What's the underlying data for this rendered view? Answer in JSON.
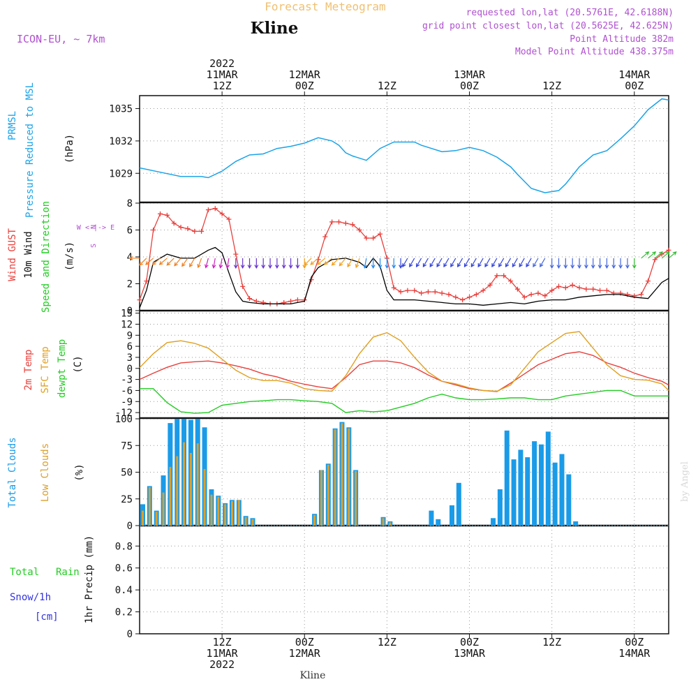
{
  "header": {
    "title": "Forecast Meteogram",
    "location": "Kline",
    "model": "ICON-EU, ~ 7km",
    "requested": "requested lon,lat (20.5761E, 42.6188N)",
    "grid_point": "grid point closest lon,lat (20.5625E, 42.625N)",
    "point_altitude": "Point Altitude 382m",
    "model_altitude": "Model Point Altitude 438.375m",
    "footer_location": "Kline",
    "watermark": "by Angel"
  },
  "colors": {
    "pressure": "#1aa3e8",
    "gust": "#e8403c",
    "wind": "#000000",
    "temp": "#e8403c",
    "sfc": "#e0a020",
    "dewpt": "#22cc22",
    "total_clouds": "#1a9be8",
    "low_clouds": "#d9a030",
    "purple": "#b050d0",
    "orange": "#f0c070",
    "rain": "#22cc22",
    "snow": "#3333dd"
  },
  "time_axis": {
    "top_labels": [
      {
        "t": 12,
        "lines": [
          "2022",
          "11MAR",
          "12Z"
        ]
      },
      {
        "t": 24,
        "lines": [
          "12MAR",
          "00Z"
        ]
      },
      {
        "t": 36,
        "lines": [
          "12Z"
        ]
      },
      {
        "t": 48,
        "lines": [
          "13MAR",
          "00Z"
        ]
      },
      {
        "t": 60,
        "lines": [
          "12Z"
        ]
      },
      {
        "t": 72,
        "lines": [
          "14MAR",
          "00Z"
        ]
      }
    ],
    "bottom_labels": [
      {
        "t": 12,
        "lines": [
          "12Z",
          "11MAR",
          "2022"
        ]
      },
      {
        "t": 24,
        "lines": [
          "00Z",
          "12MAR"
        ]
      },
      {
        "t": 36,
        "lines": [
          "12Z"
        ]
      },
      {
        "t": 48,
        "lines": [
          "00Z",
          "13MAR"
        ]
      },
      {
        "t": 60,
        "lines": [
          "12Z"
        ]
      },
      {
        "t": 72,
        "lines": [
          "00Z",
          "14MAR"
        ]
      }
    ],
    "range_hours": [
      0,
      77
    ]
  },
  "panel_labels": {
    "pressure": [
      "PRMSL",
      "Pressure Reduced to MSL"
    ],
    "pressure_unit": "(hPa)",
    "wind": [
      "Wind GUST",
      "10m Wind",
      "Speed and Direction"
    ],
    "wind_unit": "(m/s)",
    "compass": [
      "N",
      "W <-|-> E",
      "S"
    ],
    "temp": [
      "2m Temp",
      "SFC Temp",
      "dewpt Temp"
    ],
    "temp_unit": "(C)",
    "clouds": [
      "Total Clouds",
      "Low Clouds"
    ],
    "clouds_unit": "(%)",
    "precip": [
      "Total",
      "Rain",
      "Snow/1h",
      "[cm]"
    ],
    "precip_unit": "1hr Precip (mm)"
  },
  "chart_data": [
    {
      "type": "line",
      "title": "PRMSL Pressure Reduced to MSL",
      "ylabel": "hPa",
      "ylim": [
        1026.3,
        1036.2
      ],
      "yticks": [
        "1029",
        "1032",
        "1035"
      ],
      "x": [
        0,
        3,
        6,
        9,
        10,
        12,
        14,
        16,
        18,
        20,
        22,
        24,
        26,
        28,
        29,
        30,
        31,
        33,
        35,
        37,
        40,
        41,
        44,
        46,
        48,
        50,
        52,
        54,
        55,
        57,
        59,
        60,
        61,
        62,
        63,
        64,
        66,
        68,
        70,
        72,
        74,
        76,
        77
      ],
      "values": [
        1029.5,
        1029.1,
        1028.7,
        1028.7,
        1028.6,
        1029.2,
        1030.1,
        1030.7,
        1030.8,
        1031.3,
        1031.5,
        1031.8,
        1032.3,
        1032.0,
        1031.6,
        1030.9,
        1030.6,
        1030.2,
        1031.3,
        1031.9,
        1031.9,
        1031.6,
        1031.0,
        1031.1,
        1031.4,
        1031.1,
        1030.5,
        1029.6,
        1028.9,
        1027.6,
        1027.2,
        1027.3,
        1027.4,
        1028.0,
        1028.8,
        1029.6,
        1030.7,
        1031.1,
        1032.2,
        1033.4,
        1034.9,
        1035.9,
        1035.8
      ]
    },
    {
      "type": "line",
      "title": "Wind GUST / 10m Wind Speed and Direction",
      "ylabel": "m/s",
      "ylim": [
        0,
        8
      ],
      "yticks": [
        "0",
        "2",
        "4",
        "6",
        "8"
      ],
      "series": [
        {
          "name": "Wind GUST",
          "x": [
            0,
            1,
            2,
            3,
            4,
            5,
            6,
            7,
            8,
            9,
            10,
            11,
            12,
            13,
            14,
            15,
            16,
            17,
            18,
            19,
            20,
            21,
            22,
            23,
            24,
            25,
            26,
            27,
            28,
            29,
            30,
            31,
            32,
            33,
            34,
            35,
            36,
            37,
            38,
            39,
            40,
            41,
            42,
            43,
            44,
            45,
            46,
            47,
            48,
            49,
            50,
            51,
            52,
            53,
            54,
            55,
            56,
            57,
            58,
            59,
            60,
            61,
            62,
            63,
            64,
            65,
            66,
            67,
            68,
            69,
            70,
            71,
            72,
            73,
            74,
            75,
            76,
            77
          ],
          "values": [
            0.8,
            2.2,
            6.0,
            7.2,
            7.1,
            6.5,
            6.2,
            6.1,
            5.9,
            5.9,
            7.5,
            7.6,
            7.2,
            6.8,
            4.2,
            1.8,
            0.9,
            0.7,
            0.6,
            0.5,
            0.5,
            0.6,
            0.7,
            0.8,
            0.8,
            2.3,
            3.8,
            5.5,
            6.6,
            6.6,
            6.5,
            6.4,
            6.0,
            5.4,
            5.4,
            5.7,
            3.9,
            1.7,
            1.4,
            1.5,
            1.5,
            1.3,
            1.4,
            1.4,
            1.3,
            1.2,
            1.0,
            0.8,
            1.0,
            1.2,
            1.5,
            1.9,
            2.6,
            2.6,
            2.2,
            1.6,
            1.0,
            1.2,
            1.3,
            1.1,
            1.5,
            1.8,
            1.7,
            1.9,
            1.7,
            1.6,
            1.6,
            1.5,
            1.5,
            1.3,
            1.3,
            1.2,
            1.1,
            1.2,
            2.2,
            3.8,
            4.2,
            4.5
          ]
        },
        {
          "name": "10m Wind",
          "x": [
            0,
            1,
            2,
            4,
            6,
            8,
            10,
            11,
            12,
            13,
            14,
            15,
            16,
            18,
            20,
            22,
            23,
            24,
            25,
            26,
            28,
            30,
            32,
            33,
            34,
            35,
            36,
            37,
            40,
            42,
            44,
            46,
            48,
            50,
            52,
            54,
            56,
            58,
            60,
            62,
            64,
            66,
            68,
            70,
            72,
            74,
            76,
            77
          ],
          "values": [
            0.2,
            1.5,
            3.6,
            4.2,
            3.9,
            3.9,
            4.5,
            4.7,
            4.3,
            2.8,
            1.4,
            0.7,
            0.6,
            0.5,
            0.5,
            0.5,
            0.6,
            0.7,
            2.5,
            3.2,
            3.8,
            3.9,
            3.6,
            3.2,
            3.9,
            3.3,
            1.5,
            0.8,
            0.8,
            0.7,
            0.6,
            0.5,
            0.5,
            0.4,
            0.5,
            0.6,
            0.5,
            0.7,
            0.8,
            0.8,
            1.0,
            1.1,
            1.2,
            1.2,
            1.0,
            0.9,
            2.1,
            2.4
          ]
        }
      ],
      "wind_dir_x": [
        0,
        1,
        2,
        3,
        4,
        5,
        6,
        7,
        8,
        9,
        10,
        11,
        12,
        13,
        14,
        15,
        16,
        17,
        18,
        19,
        20,
        21,
        22,
        23,
        24,
        25,
        26,
        27,
        28,
        29,
        30,
        31,
        32,
        33,
        34,
        35,
        36,
        37,
        38,
        39,
        40,
        41,
        42,
        43,
        44,
        45,
        46,
        47,
        48,
        49,
        50,
        51,
        52,
        53,
        54,
        55,
        56,
        57,
        58,
        59,
        60,
        61,
        62,
        63,
        64,
        65,
        66,
        67,
        68,
        69,
        70,
        71,
        72,
        73,
        74,
        75,
        76,
        77
      ],
      "wind_dir_deg": [
        0,
        45,
        40,
        40,
        40,
        45,
        50,
        55,
        60,
        70,
        75,
        80,
        80,
        80,
        90,
        90,
        90,
        90,
        90,
        90,
        90,
        90,
        90,
        90,
        90,
        45,
        40,
        40,
        40,
        45,
        50,
        60,
        70,
        80,
        90,
        90,
        90,
        90,
        90,
        60,
        60,
        60,
        60,
        60,
        60,
        60,
        60,
        60,
        60,
        60,
        60,
        60,
        60,
        60,
        60,
        60,
        60,
        60,
        60,
        60,
        90,
        90,
        90,
        90,
        90,
        90,
        90,
        90,
        90,
        90,
        90,
        90,
        90,
        220,
        220,
        220,
        220,
        220
      ]
    },
    {
      "type": "line",
      "title": "2m Temp / SFC Temp / dewpt Temp",
      "ylabel": "C",
      "ylim": [
        -13.5,
        15.5
      ],
      "yticks": [
        "-12",
        "-9",
        "-6",
        "-3",
        "0",
        "3",
        "6",
        "9",
        "12",
        "15"
      ],
      "series": [
        {
          "name": "2m Temp",
          "x": [
            0,
            2,
            4,
            6,
            8,
            10,
            12,
            14,
            16,
            18,
            20,
            22,
            24,
            26,
            28,
            30,
            32,
            34,
            36,
            38,
            40,
            42,
            44,
            46,
            48,
            50,
            52,
            54,
            56,
            58,
            60,
            62,
            64,
            66,
            68,
            70,
            72,
            74,
            76,
            77
          ],
          "values": [
            -3.0,
            -1.3,
            0.3,
            1.5,
            1.8,
            2.0,
            1.5,
            0.7,
            -0.2,
            -1.5,
            -2.3,
            -3.5,
            -4.3,
            -5.0,
            -5.5,
            -2.5,
            1.0,
            2.0,
            2.0,
            1.5,
            0.2,
            -1.8,
            -3.5,
            -4.5,
            -5.5,
            -6.0,
            -6.3,
            -4.0,
            -1.5,
            1.0,
            2.5,
            4.0,
            4.5,
            3.5,
            1.5,
            0.3,
            -1.3,
            -2.5,
            -3.5,
            -4.5
          ]
        },
        {
          "name": "SFC Temp",
          "x": [
            0,
            2,
            4,
            6,
            8,
            10,
            12,
            14,
            16,
            18,
            20,
            22,
            24,
            26,
            28,
            30,
            32,
            34,
            36,
            38,
            40,
            42,
            44,
            46,
            48,
            50,
            52,
            54,
            56,
            58,
            60,
            62,
            64,
            66,
            68,
            70,
            72,
            74,
            76,
            77
          ],
          "values": [
            0.2,
            4.0,
            7.0,
            7.5,
            6.8,
            5.5,
            2.5,
            -0.5,
            -2.5,
            -3.3,
            -3.3,
            -4.0,
            -5.5,
            -6.0,
            -6.2,
            -2.0,
            4.0,
            8.5,
            9.7,
            7.5,
            3.0,
            -1.0,
            -3.5,
            -4.2,
            -5.3,
            -6.0,
            -6.2,
            -4.5,
            0.0,
            4.5,
            7.0,
            9.5,
            10.0,
            5.5,
            1.0,
            -2.0,
            -3.0,
            -3.2,
            -4.2,
            -6.0
          ]
        },
        {
          "name": "dewpt Temp",
          "x": [
            0,
            2,
            4,
            6,
            8,
            10,
            12,
            14,
            16,
            18,
            20,
            22,
            24,
            26,
            28,
            30,
            32,
            34,
            36,
            38,
            40,
            42,
            44,
            46,
            48,
            50,
            52,
            54,
            56,
            58,
            60,
            62,
            64,
            66,
            68,
            70,
            72,
            74,
            76,
            77
          ],
          "values": [
            -5.5,
            -5.5,
            -9.3,
            -11.8,
            -12.2,
            -12.0,
            -10.0,
            -9.5,
            -9.0,
            -8.8,
            -8.5,
            -8.5,
            -8.8,
            -9.0,
            -9.5,
            -12.0,
            -11.5,
            -11.8,
            -11.5,
            -10.5,
            -9.5,
            -8.0,
            -7.0,
            -8.0,
            -8.5,
            -8.5,
            -8.3,
            -8.0,
            -8.0,
            -8.5,
            -8.5,
            -7.5,
            -7.0,
            -6.5,
            -6.0,
            -6.0,
            -7.5,
            -7.5,
            -7.5,
            -7.5
          ]
        }
      ]
    },
    {
      "type": "bar",
      "title": "Total Clouds / Low Clouds",
      "ylabel": "%",
      "ylim": [
        0,
        100
      ],
      "yticks": [
        "0",
        "25",
        "50",
        "75",
        "100"
      ],
      "x": [
        0,
        1,
        2,
        3,
        4,
        5,
        6,
        7,
        8,
        9,
        10,
        11,
        12,
        13,
        14,
        15,
        16,
        17,
        18,
        19,
        20,
        21,
        22,
        23,
        24,
        25,
        26,
        27,
        28,
        29,
        30,
        31,
        32,
        33,
        34,
        35,
        36,
        37,
        38,
        39,
        40,
        41,
        42,
        43,
        44,
        45,
        46,
        47,
        48,
        49,
        50,
        51,
        52,
        53,
        54,
        55,
        56,
        57,
        58,
        59,
        60,
        61,
        62,
        63,
        64,
        65,
        66,
        67,
        68,
        69,
        70,
        71,
        72,
        73,
        74,
        75,
        76,
        77
      ],
      "series": [
        {
          "name": "Total Clouds",
          "values": [
            20,
            37,
            14,
            47,
            96,
            100,
            100,
            99,
            100,
            92,
            34,
            28,
            21,
            24,
            24,
            9,
            7,
            0,
            0,
            0,
            0,
            0,
            0,
            0,
            0,
            11,
            52,
            58,
            91,
            97,
            92,
            52,
            0,
            0,
            0,
            8,
            4,
            0,
            0,
            0,
            0,
            0,
            14,
            6,
            0,
            19,
            40,
            0,
            0,
            0,
            0,
            7,
            34,
            89,
            62,
            71,
            64,
            79,
            76,
            88,
            59,
            67,
            48,
            4,
            0,
            0,
            0,
            0,
            0,
            0,
            0,
            0,
            0,
            0,
            0,
            0,
            0,
            0
          ]
        },
        {
          "name": "Low Clouds",
          "values": [
            14,
            36,
            13,
            31,
            55,
            65,
            78,
            68,
            77,
            53,
            29,
            27,
            20,
            23,
            24,
            8,
            6,
            0,
            0,
            0,
            0,
            0,
            0,
            0,
            0,
            10,
            52,
            57,
            90,
            96,
            91,
            51,
            0,
            0,
            0,
            7,
            3,
            0,
            0,
            0,
            0,
            0,
            0,
            0,
            0,
            0,
            0,
            0,
            0,
            0,
            0,
            0,
            0,
            0,
            0,
            0,
            0,
            0,
            0,
            0,
            0,
            0,
            0,
            0,
            0,
            0,
            0,
            0,
            0,
            0,
            0,
            0,
            0,
            0,
            0,
            0,
            0,
            0
          ]
        }
      ]
    },
    {
      "type": "bar",
      "title": "1hr Precip",
      "ylabel": "mm",
      "ylim": [
        0,
        0.98
      ],
      "yticks": [
        "0",
        "0.2",
        "0.4",
        "0.6",
        "0.8"
      ],
      "series": [
        {
          "name": "Total Rain",
          "values": []
        },
        {
          "name": "Snow/1h [cm]",
          "values": []
        }
      ]
    }
  ]
}
